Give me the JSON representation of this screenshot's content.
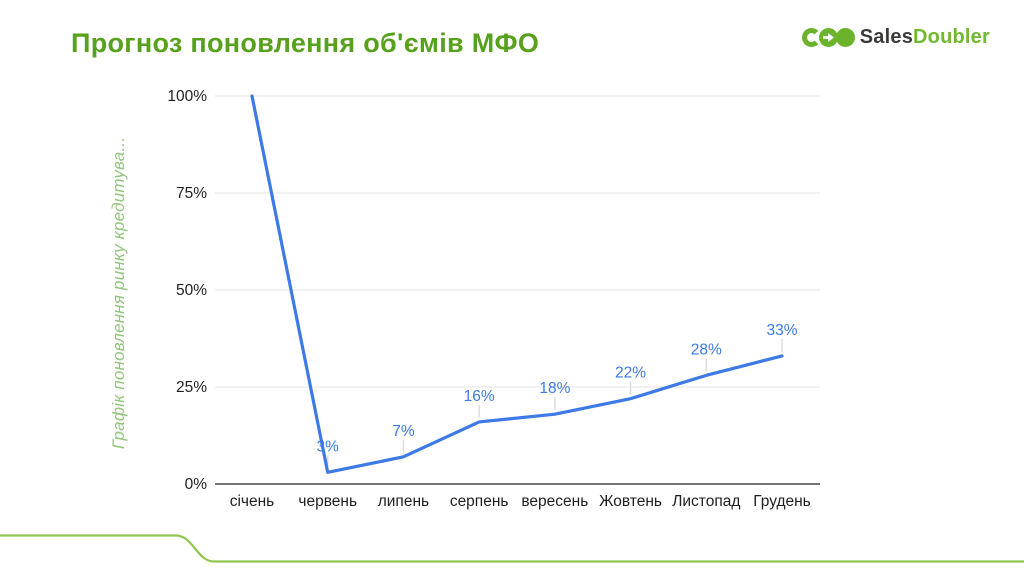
{
  "header": {
    "title": "Прогноз поновлення об'ємів МФО"
  },
  "logo": {
    "sales": "Sales",
    "doubler": "Doubler"
  },
  "chart_data": {
    "type": "line",
    "title": "",
    "y_axis_title": "Графік поновлення ринку кредитува...",
    "categories": [
      "січень",
      "червень",
      "липень",
      "серпень",
      "вересень",
      "Жовтень",
      "Листопад",
      "Грудень"
    ],
    "values": [
      100,
      3,
      7,
      16,
      18,
      22,
      28,
      33
    ],
    "data_labels": [
      "",
      "3%",
      "7%",
      "16%",
      "18%",
      "22%",
      "28%",
      "33%"
    ],
    "y_ticks": [
      0,
      25,
      50,
      75,
      100
    ],
    "y_tick_labels": [
      "0%",
      "25%",
      "50%",
      "75%",
      "100%"
    ],
    "ylim": [
      0,
      100
    ],
    "grid": true,
    "legend": "none",
    "series_color": "#3d7ae5",
    "data_label_color": "#3d7ae5",
    "gridline_color": "#e6e6e6",
    "axis_line_color": "#757575",
    "leader_line_color": "#dcdcdc",
    "tick_text_color": "#1f1f1f"
  },
  "colors": {
    "title_green": "#58a11c",
    "logo_green": "#6ab32b",
    "logo_doubler_green": "#71b92e",
    "logo_dark": "#3a3a39",
    "y_axis_title_green": "#93c47d",
    "deco_line_green": "#8ec64f",
    "background": "#ffffff"
  }
}
